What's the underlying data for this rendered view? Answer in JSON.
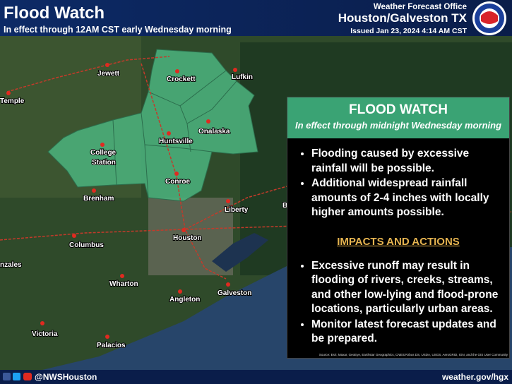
{
  "header": {
    "title": "Flood Watch",
    "subtitle": "In effect through 12AM CST early Wednesday morning",
    "office": "Weather Forecast Office",
    "location": "Houston/Galveston TX",
    "issued": "Issued Jan 23, 2024 4:14 AM CST"
  },
  "map": {
    "cities": [
      [
        "Jewett"
      ],
      [
        "Crockett"
      ],
      [
        "Lufkin"
      ],
      [
        "Temple"
      ],
      [
        "Onalaska"
      ],
      [
        "Huntsville"
      ],
      [
        "College",
        "Station"
      ],
      [
        "Brenham"
      ],
      [
        "Conroe"
      ],
      [
        "Liberty"
      ],
      [
        "Houston"
      ],
      [
        "Columbus"
      ],
      [
        "nzales"
      ],
      [
        "Wharton"
      ],
      [
        "Angleton"
      ],
      [
        "Galveston"
      ],
      [
        "Victoria"
      ],
      [
        "Palacios"
      ],
      [
        "B"
      ]
    ],
    "source": "Source: Esri, Maxar, GeoEye, Earthstar Geographics, CNES/Airbus DS, USDA, USGS, AeroGRID, IGN, and the GIS User Community"
  },
  "panel": {
    "title": "FLOOD WATCH",
    "subtitle": "In effect through midnight Wednesday morning",
    "bullets": [
      "Flooding caused by excessive rainfall will be possible.",
      "Additional widespread rainfall amounts of 2-4 inches with locally higher amounts possible."
    ],
    "heading": "IMPACTS AND ACTIONS",
    "actions": [
      "Excessive runoff may result in flooding of rivers, creeks, streams, and other low-lying and flood-prone locations, particularly urban areas.",
      "Monitor latest forecast updates and be prepared."
    ]
  },
  "footer": {
    "handle": "@NWSHouston",
    "url": "weather.gov/hgx"
  }
}
